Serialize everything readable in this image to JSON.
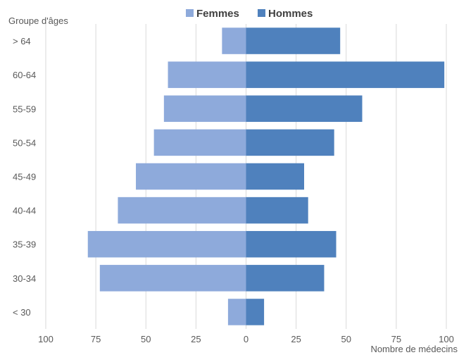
{
  "chart_data": {
    "type": "bar",
    "orientation": "horizontal",
    "categories": [
      "< 30",
      "30-34",
      "35-39",
      "40-44",
      "45-49",
      "50-54",
      "55-59",
      "60-64",
      "> 64"
    ],
    "series": [
      {
        "name": "Femmes",
        "values": [
          9,
          73,
          79,
          64,
          55,
          46,
          41,
          39,
          12
        ],
        "direction": "left"
      },
      {
        "name": "Hommes",
        "values": [
          9,
          39,
          45,
          31,
          29,
          44,
          58,
          99,
          47
        ],
        "direction": "right"
      }
    ],
    "xlabel": "Nombre de médecins",
    "ylabel": "Groupe d'âges",
    "xticks": [
      "100",
      "75",
      "50",
      "25",
      "0",
      "25",
      "50",
      "75",
      "100"
    ],
    "xlim": [
      -100,
      100
    ],
    "grid": true,
    "legend_position": "top",
    "colors": {
      "Femmes": "#8eaadb",
      "Hommes": "#4f81bd",
      "grid": "#d9d9d9",
      "text": "#595959"
    }
  }
}
